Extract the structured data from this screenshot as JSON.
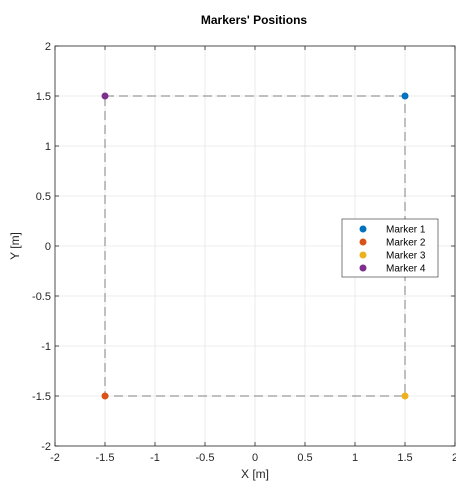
{
  "chart_data": {
    "type": "scatter",
    "title": "Markers' Positions",
    "xlabel": "X [m]",
    "ylabel": "Y [m]",
    "xlim": [
      -2,
      2
    ],
    "ylim": [
      -2,
      2
    ],
    "xticks": [
      "-2",
      "-1.5",
      "-1",
      "-0.5",
      "0",
      "0.5",
      "1",
      "1.5",
      "2"
    ],
    "yticks": [
      "-2",
      "-1.5",
      "-1",
      "-0.5",
      "0",
      "0.5",
      "1",
      "1.5",
      "2"
    ],
    "grid": true,
    "legend_position": "right",
    "series": [
      {
        "name": "Marker 1",
        "color": "#0072BD",
        "x": [
          1.5
        ],
        "y": [
          1.5
        ]
      },
      {
        "name": "Marker 2",
        "color": "#D95319",
        "x": [
          -1.5
        ],
        "y": [
          -1.5
        ]
      },
      {
        "name": "Marker 3",
        "color": "#EDB120",
        "x": [
          1.5
        ],
        "y": [
          -1.5
        ]
      },
      {
        "name": "Marker 4",
        "color": "#7E2F8E",
        "x": [
          -1.5
        ],
        "y": [
          1.5
        ]
      }
    ],
    "boundary": {
      "style": "dashed",
      "color": "#808080",
      "x": [
        -1.5,
        1.5,
        1.5,
        -1.5,
        -1.5
      ],
      "y": [
        1.5,
        1.5,
        -1.5,
        -1.5,
        1.5
      ]
    }
  }
}
